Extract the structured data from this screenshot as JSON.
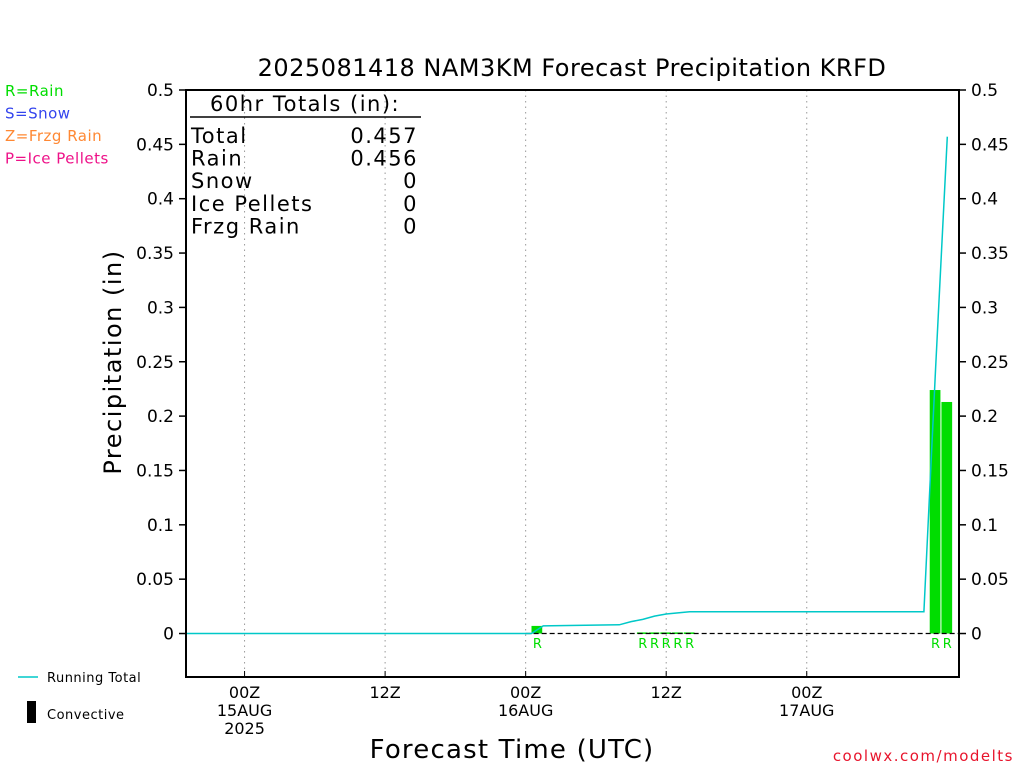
{
  "chart_data": {
    "type": "bar",
    "title": "2025081418 NAM3KM Forecast Precipitation KRFD",
    "xlabel": "Forecast Time (UTC)",
    "ylabel": "Precipitation (in)",
    "ylim": [
      -0.04,
      0.5
    ],
    "xlim_hours": [
      -5,
      61
    ],
    "y_ticks": [
      "0",
      "0.05",
      "0.1",
      "0.15",
      "0.2",
      "0.25",
      "0.3",
      "0.35",
      "0.4",
      "0.45",
      "0.5"
    ],
    "y_tick_values": [
      0,
      0.05,
      0.1,
      0.15,
      0.2,
      0.25,
      0.3,
      0.35,
      0.4,
      0.45,
      0.5
    ],
    "x_ticks": [
      {
        "hour": 0,
        "lines": [
          "00Z",
          "15AUG",
          "2025"
        ]
      },
      {
        "hour": 12,
        "lines": [
          "12Z"
        ]
      },
      {
        "hour": 24,
        "lines": [
          "00Z",
          "16AUG"
        ]
      },
      {
        "hour": 36,
        "lines": [
          "12Z"
        ]
      },
      {
        "hour": 48,
        "lines": [
          "00Z",
          "17AUG"
        ]
      }
    ],
    "grid": "vertical dotted at tick hours",
    "precip_type_legend": [
      {
        "code": "R",
        "label": "R=Rain",
        "color": "#00dd00"
      },
      {
        "code": "S",
        "label": "S=Snow",
        "color": "#3344ee"
      },
      {
        "code": "Z",
        "label": "Z=Frzg Rain",
        "color": "#ff8833"
      },
      {
        "code": "P",
        "label": "P=Ice Pellets",
        "color": "#ee1188"
      }
    ],
    "series_legend": [
      {
        "label": "Running Total",
        "color": "#00c8c8"
      },
      {
        "label": "Convective",
        "color": "#000000"
      }
    ],
    "totals_box": {
      "title": "60hr Totals (in):",
      "rows": [
        {
          "label": "Total",
          "value": "0.457"
        },
        {
          "label": "Rain",
          "value": "0.456"
        },
        {
          "label": "Snow",
          "value": "0"
        },
        {
          "label": "Ice Pellets",
          "value": "0"
        },
        {
          "label": "Frzg Rain",
          "value": "0"
        }
      ]
    },
    "hourly_precip": [
      {
        "hour": 25,
        "value": 0.007,
        "type": "R",
        "label": "R"
      },
      {
        "hour": 34,
        "value": 0.001,
        "type": "R",
        "label": "R"
      },
      {
        "hour": 35,
        "value": 0.001,
        "type": "R",
        "label": "R"
      },
      {
        "hour": 36,
        "value": 0.001,
        "type": "R",
        "label": "R"
      },
      {
        "hour": 37,
        "value": 0.001,
        "type": "R",
        "label": "R"
      },
      {
        "hour": 38,
        "value": 0.001,
        "type": "R",
        "label": "R"
      },
      {
        "hour": 59,
        "value": 0.224,
        "type": "R",
        "label": "R"
      },
      {
        "hour": 60,
        "value": 0.213,
        "type": "R",
        "label": "R"
      }
    ],
    "running_total": {
      "name": "Running Total",
      "x": [
        -5,
        24.5,
        25.5,
        32,
        33,
        34,
        35,
        36,
        37,
        38,
        58,
        59,
        60
      ],
      "y": [
        0,
        0,
        0.007,
        0.008,
        0.011,
        0.013,
        0.016,
        0.018,
        0.019,
        0.02,
        0.02,
        0.244,
        0.457
      ]
    },
    "credit": "coolwx.com/modelts"
  }
}
